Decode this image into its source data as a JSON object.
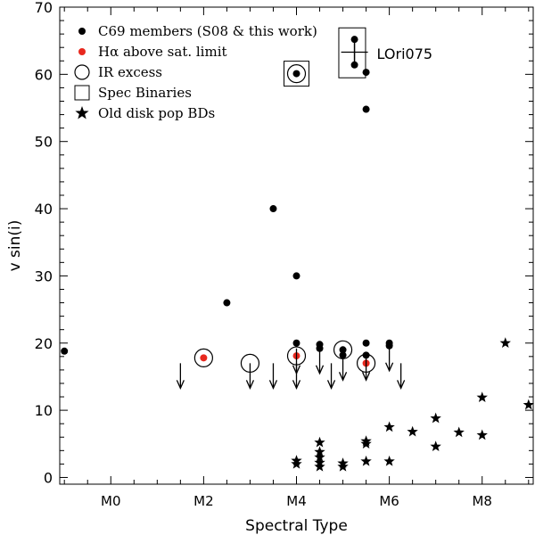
{
  "chart_data": {
    "type": "scatter",
    "xlabel": "Spectral Type",
    "ylabel": "v sin(i)",
    "xlim": [
      -1.1,
      9.1
    ],
    "ylim": [
      -1,
      70
    ],
    "x_ticks": [
      {
        "x": 0,
        "label": "M0"
      },
      {
        "x": 2,
        "label": "M2"
      },
      {
        "x": 4,
        "label": "M4"
      },
      {
        "x": 6,
        "label": "M6"
      },
      {
        "x": 8,
        "label": "M8"
      }
    ],
    "y_ticks": [
      0,
      10,
      20,
      30,
      40,
      50,
      60,
      70
    ],
    "legend": {
      "placement": "top-left",
      "entries": [
        {
          "symbol": "dot",
          "label": "C69 members (S08 & this work)",
          "color": "#000000"
        },
        {
          "symbol": "dot",
          "label": "Hα above sat. limit",
          "color": "#e8281e"
        },
        {
          "symbol": "open-circle",
          "label": "IR excess",
          "color": "#000000"
        },
        {
          "symbol": "open-square",
          "label": "Spec Binaries",
          "color": "#000000"
        },
        {
          "symbol": "star",
          "label": "Old disk pop BDs",
          "color": "#000000"
        }
      ]
    },
    "annotation": {
      "text": "LOri075",
      "color": "#888888"
    },
    "series": [
      {
        "symbol": "dot",
        "color": "#000000",
        "points": [
          {
            "x": -1.0,
            "y": 18.8
          },
          {
            "x": 2.5,
            "y": 26.0
          },
          {
            "x": 3.5,
            "y": 40.0
          },
          {
            "x": 4.0,
            "y": 30.0
          },
          {
            "x": 4.0,
            "y": 20.0
          },
          {
            "x": 4.0,
            "y": 60.1
          },
          {
            "x": 5.5,
            "y": 60.3
          },
          {
            "x": 5.5,
            "y": 54.8
          },
          {
            "x": 5.25,
            "y": 65.2
          },
          {
            "x": 5.25,
            "y": 61.4
          },
          {
            "x": 4.5,
            "y": 19.8
          },
          {
            "x": 4.5,
            "y": 19.2
          },
          {
            "x": 5.0,
            "y": 19.0
          },
          {
            "x": 5.0,
            "y": 18.2
          },
          {
            "x": 5.5,
            "y": 20.0
          },
          {
            "x": 5.5,
            "y": 18.2
          },
          {
            "x": 6.0,
            "y": 20.0
          },
          {
            "x": 6.0,
            "y": 19.6
          }
        ]
      },
      {
        "symbol": "dot",
        "color": "#e8281e",
        "points": [
          {
            "x": 2.0,
            "y": 17.8
          },
          {
            "x": 4.0,
            "y": 18.1
          },
          {
            "x": 5.5,
            "y": 17.0
          }
        ]
      },
      {
        "symbol": "open-circle",
        "color": "#000000",
        "points": [
          {
            "x": 2.0,
            "y": 17.8
          },
          {
            "x": 3.0,
            "y": 17.0
          },
          {
            "x": 4.0,
            "y": 60.1
          },
          {
            "x": 4.0,
            "y": 18.1
          },
          {
            "x": 5.0,
            "y": 19.0
          },
          {
            "x": 5.5,
            "y": 17.0
          }
        ]
      },
      {
        "symbol": "open-square",
        "color": "#000000",
        "points": [
          {
            "x": 4.0,
            "y": 60.1
          },
          {
            "x": 5.2,
            "y": 63.2
          }
        ]
      },
      {
        "symbol": "upper-limit",
        "color": "#000000",
        "points": [
          {
            "x": 1.5,
            "y": 17.0
          },
          {
            "x": 3.0,
            "y": 17.0
          },
          {
            "x": 3.5,
            "y": 17.0
          },
          {
            "x": 4.0,
            "y": 17.0
          },
          {
            "x": 4.0,
            "y": 19.2
          },
          {
            "x": 4.5,
            "y": 19.2
          },
          {
            "x": 4.75,
            "y": 17.0
          },
          {
            "x": 5.0,
            "y": 18.2
          },
          {
            "x": 5.5,
            "y": 18.2
          },
          {
            "x": 6.0,
            "y": 19.6
          },
          {
            "x": 6.25,
            "y": 17.0
          }
        ]
      },
      {
        "symbol": "star",
        "color": "#000000",
        "points": [
          {
            "x": 4.0,
            "y": 2.0
          },
          {
            "x": 4.0,
            "y": 2.5
          },
          {
            "x": 4.5,
            "y": 5.2
          },
          {
            "x": 4.5,
            "y": 3.8
          },
          {
            "x": 4.5,
            "y": 3.0
          },
          {
            "x": 4.5,
            "y": 2.2
          },
          {
            "x": 4.5,
            "y": 1.6
          },
          {
            "x": 5.0,
            "y": 2.1
          },
          {
            "x": 5.0,
            "y": 1.6
          },
          {
            "x": 5.5,
            "y": 5.4
          },
          {
            "x": 5.5,
            "y": 5.0
          },
          {
            "x": 5.5,
            "y": 2.4
          },
          {
            "x": 6.0,
            "y": 7.5
          },
          {
            "x": 6.0,
            "y": 2.4
          },
          {
            "x": 6.5,
            "y": 6.8
          },
          {
            "x": 7.0,
            "y": 8.8
          },
          {
            "x": 7.0,
            "y": 4.6
          },
          {
            "x": 7.5,
            "y": 6.7
          },
          {
            "x": 8.0,
            "y": 11.9
          },
          {
            "x": 8.0,
            "y": 6.3
          },
          {
            "x": 8.5,
            "y": 20.0
          },
          {
            "x": 9.0,
            "y": 10.8
          }
        ]
      }
    ],
    "error_bars": [
      {
        "x": 5.25,
        "y_low": 61.4,
        "y_high": 65.2
      }
    ]
  }
}
